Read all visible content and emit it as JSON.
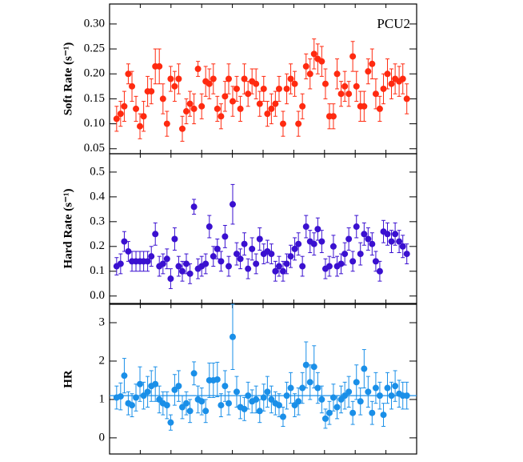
{
  "chart_data": [
    {
      "type": "scatter",
      "ylabel": "Soft Rate (s⁻¹)",
      "annotation": "PCU2",
      "color": "#ff2a10",
      "xlim": [
        0,
        100
      ],
      "xticks": [
        0,
        10,
        20,
        30,
        40,
        50,
        60,
        70,
        80,
        90,
        100
      ],
      "ylim": [
        0.04,
        0.34
      ],
      "yticks": [
        0.05,
        {
          "value": 0.1,
          "label": "0.10"
        },
        0.15,
        {
          "value": 0.2,
          "label": "0.20"
        },
        0.25,
        {
          "value": 0.3,
          "label": "0.30"
        }
      ],
      "x": [
        2.3,
        3.6,
        4.8,
        6.1,
        7.3,
        8.6,
        9.9,
        11.1,
        12.4,
        13.6,
        14.9,
        16.2,
        17.4,
        18.7,
        19.9,
        21.2,
        22.5,
        23.7,
        25.0,
        26.2,
        27.5,
        28.8,
        30.0,
        31.3,
        32.5,
        33.8,
        35.1,
        36.3,
        37.6,
        38.8,
        40.1,
        41.4,
        42.6,
        43.9,
        45.1,
        46.4,
        47.7,
        48.9,
        50.2,
        51.4,
        52.7,
        54.0,
        55.2,
        56.5,
        57.7,
        59.0,
        60.3,
        61.5,
        62.8,
        64.0,
        65.3,
        66.6,
        67.8,
        69.1,
        70.3,
        71.6,
        72.9,
        74.1,
        75.4,
        76.6,
        77.9,
        79.2,
        80.4,
        81.7,
        82.9,
        84.2,
        85.5,
        86.7,
        88.0,
        89.2,
        90.5,
        91.8,
        93.0,
        94.3,
        95.5,
        96.8
      ],
      "values": [
        0.11,
        0.12,
        0.135,
        0.2,
        0.175,
        0.13,
        0.095,
        0.115,
        0.165,
        0.165,
        0.215,
        0.215,
        0.15,
        0.1,
        0.19,
        0.175,
        0.19,
        0.09,
        0.125,
        0.14,
        0.13,
        0.21,
        0.135,
        0.185,
        0.18,
        0.19,
        0.13,
        0.115,
        0.155,
        0.19,
        0.145,
        0.17,
        0.13,
        0.19,
        0.16,
        0.185,
        0.18,
        0.14,
        0.17,
        0.12,
        0.13,
        0.14,
        0.17,
        0.1,
        0.17,
        0.19,
        0.18,
        0.1,
        0.135,
        0.215,
        0.2,
        0.24,
        0.23,
        0.225,
        0.18,
        0.115,
        0.115,
        0.2,
        0.16,
        0.175,
        0.16,
        0.235,
        0.175,
        0.135,
        0.135,
        0.205,
        0.22,
        0.16,
        0.13,
        0.17,
        0.2,
        0.18,
        0.19,
        0.185,
        0.19,
        0.15
      ],
      "errors": [
        0.025,
        0.025,
        0.03,
        0.02,
        0.03,
        0.025,
        0.025,
        0.03,
        0.03,
        0.025,
        0.035,
        0.035,
        0.03,
        0.025,
        0.025,
        0.03,
        0.03,
        0.025,
        0.025,
        0.025,
        0.03,
        0.015,
        0.025,
        0.03,
        0.03,
        0.03,
        0.025,
        0.025,
        0.03,
        0.03,
        0.03,
        0.025,
        0.025,
        0.03,
        0.025,
        0.025,
        0.03,
        0.025,
        0.025,
        0.025,
        0.03,
        0.025,
        0.025,
        0.025,
        0.03,
        0.03,
        0.025,
        0.025,
        0.025,
        0.025,
        0.03,
        0.03,
        0.03,
        0.03,
        0.03,
        0.025,
        0.025,
        0.03,
        0.025,
        0.03,
        0.025,
        0.03,
        0.03,
        0.03,
        0.03,
        0.025,
        0.03,
        0.03,
        0.025,
        0.03,
        0.03,
        0.03,
        0.03,
        0.03,
        0.03,
        0.03
      ]
    },
    {
      "type": "scatter",
      "ylabel": "Hard Rate (s⁻¹)",
      "color": "#3a10d0",
      "xlim": [
        0,
        100
      ],
      "xticks": [
        0,
        10,
        20,
        30,
        40,
        50,
        60,
        70,
        80,
        90,
        100
      ],
      "ylim": [
        -0.03,
        0.574
      ],
      "yticks": [
        {
          "value": 0,
          "label": "0.0"
        },
        0.1,
        0.2,
        0.3,
        0.4,
        0.5
      ],
      "x": [
        2.3,
        3.6,
        4.8,
        6.1,
        7.3,
        8.6,
        9.9,
        11.1,
        12.4,
        13.6,
        14.9,
        16.2,
        17.4,
        18.7,
        19.9,
        21.2,
        22.5,
        23.7,
        25.0,
        26.2,
        27.5,
        28.8,
        30.0,
        31.3,
        32.5,
        33.8,
        35.1,
        36.3,
        37.6,
        38.8,
        40.1,
        41.4,
        42.6,
        43.9,
        45.1,
        46.4,
        47.7,
        48.9,
        50.2,
        51.4,
        52.7,
        54.0,
        55.2,
        56.5,
        57.7,
        59.0,
        60.3,
        61.5,
        62.8,
        64.0,
        65.3,
        66.6,
        67.8,
        69.1,
        70.3,
        71.6,
        72.9,
        74.1,
        75.4,
        76.6,
        77.9,
        79.2,
        80.4,
        81.7,
        82.9,
        84.2,
        85.5,
        86.7,
        88.0,
        89.2,
        90.5,
        91.8,
        93.0,
        94.3,
        95.5,
        96.8
      ],
      "values": [
        0.12,
        0.13,
        0.22,
        0.18,
        0.14,
        0.14,
        0.14,
        0.14,
        0.14,
        0.16,
        0.25,
        0.12,
        0.13,
        0.15,
        0.07,
        0.23,
        0.12,
        0.1,
        0.13,
        0.09,
        0.36,
        0.11,
        0.12,
        0.13,
        0.28,
        0.16,
        0.19,
        0.14,
        0.24,
        0.12,
        0.37,
        0.17,
        0.15,
        0.21,
        0.11,
        0.19,
        0.13,
        0.23,
        0.17,
        0.18,
        0.17,
        0.1,
        0.12,
        0.1,
        0.13,
        0.16,
        0.19,
        0.21,
        0.12,
        0.28,
        0.22,
        0.21,
        0.27,
        0.22,
        0.11,
        0.12,
        0.2,
        0.12,
        0.13,
        0.17,
        0.23,
        0.14,
        0.28,
        0.17,
        0.25,
        0.23,
        0.21,
        0.14,
        0.1,
        0.26,
        0.25,
        0.22,
        0.25,
        0.22,
        0.2,
        0.17
      ],
      "errors": [
        0.035,
        0.04,
        0.04,
        0.04,
        0.04,
        0.04,
        0.04,
        0.04,
        0.04,
        0.04,
        0.045,
        0.04,
        0.04,
        0.04,
        0.04,
        0.045,
        0.04,
        0.04,
        0.04,
        0.04,
        0.03,
        0.04,
        0.04,
        0.04,
        0.045,
        0.04,
        0.04,
        0.04,
        0.045,
        0.04,
        0.08,
        0.045,
        0.04,
        0.045,
        0.04,
        0.045,
        0.04,
        0.045,
        0.04,
        0.045,
        0.04,
        0.04,
        0.04,
        0.04,
        0.04,
        0.045,
        0.045,
        0.045,
        0.04,
        0.045,
        0.045,
        0.045,
        0.045,
        0.045,
        0.04,
        0.04,
        0.045,
        0.04,
        0.04,
        0.045,
        0.045,
        0.04,
        0.045,
        0.045,
        0.045,
        0.045,
        0.045,
        0.04,
        0.04,
        0.045,
        0.045,
        0.045,
        0.045,
        0.045,
        0.045,
        0.04
      ]
    },
    {
      "type": "scatter",
      "ylabel": "HR",
      "color": "#1a8fe8",
      "hline": 1.1,
      "xlim": [
        0,
        100
      ],
      "xticks": [
        0,
        10,
        20,
        30,
        40,
        50,
        60,
        70,
        80,
        90,
        100
      ],
      "ylim": [
        -0.42,
        3.48
      ],
      "yticks": [
        0,
        1,
        2,
        3
      ],
      "x": [
        2.3,
        3.6,
        4.8,
        6.1,
        7.3,
        8.6,
        9.9,
        11.1,
        12.4,
        13.6,
        14.9,
        16.2,
        17.4,
        18.7,
        19.9,
        21.2,
        22.5,
        23.7,
        25.0,
        26.2,
        27.5,
        28.8,
        30.0,
        31.3,
        32.5,
        33.8,
        35.1,
        36.3,
        37.6,
        38.8,
        40.1,
        41.4,
        42.6,
        43.9,
        45.1,
        46.4,
        47.7,
        48.9,
        50.2,
        51.4,
        52.7,
        54.0,
        55.2,
        56.5,
        57.7,
        59.0,
        60.3,
        61.5,
        62.8,
        64.0,
        65.3,
        66.6,
        67.8,
        69.1,
        70.3,
        71.6,
        72.9,
        74.1,
        75.4,
        76.6,
        77.9,
        79.2,
        80.4,
        81.7,
        82.9,
        84.2,
        85.5,
        86.7,
        88.0,
        89.2,
        90.5,
        91.8,
        93.0,
        94.3,
        95.5,
        96.8
      ],
      "values": [
        1.05,
        1.08,
        1.62,
        0.9,
        0.85,
        1.05,
        1.4,
        1.1,
        1.2,
        1.35,
        1.4,
        1.0,
        0.9,
        0.85,
        0.4,
        1.25,
        1.35,
        0.8,
        0.9,
        0.7,
        1.68,
        1.0,
        0.95,
        0.7,
        1.5,
        1.5,
        1.52,
        0.85,
        1.35,
        0.9,
        2.63,
        1.2,
        0.8,
        0.75,
        1.1,
        0.95,
        1.0,
        0.7,
        1.05,
        1.2,
        1.0,
        0.9,
        0.85,
        0.55,
        1.1,
        1.3,
        0.85,
        0.95,
        1.3,
        1.9,
        1.45,
        1.85,
        1.3,
        1.0,
        0.5,
        0.65,
        1.05,
        0.8,
        1.0,
        1.1,
        1.2,
        0.65,
        1.45,
        0.95,
        1.8,
        1.2,
        0.65,
        1.3,
        1.1,
        0.6,
        1.3,
        1.1,
        1.35,
        1.15,
        1.1,
        1.1
      ],
      "errors": [
        0.3,
        0.35,
        0.45,
        0.3,
        0.3,
        0.35,
        0.45,
        0.35,
        0.4,
        0.4,
        0.45,
        0.35,
        0.3,
        0.35,
        0.2,
        0.4,
        0.4,
        0.3,
        0.3,
        0.3,
        0.3,
        0.35,
        0.35,
        0.3,
        0.45,
        0.45,
        0.45,
        0.3,
        0.4,
        0.3,
        0.85,
        0.4,
        0.3,
        0.3,
        0.35,
        0.3,
        0.35,
        0.3,
        0.35,
        0.4,
        0.35,
        0.3,
        0.3,
        0.25,
        0.35,
        0.4,
        0.3,
        0.35,
        0.4,
        0.6,
        0.45,
        0.55,
        0.4,
        0.35,
        0.25,
        0.3,
        0.35,
        0.3,
        0.35,
        0.35,
        0.4,
        0.3,
        0.45,
        0.35,
        0.5,
        0.4,
        0.3,
        0.4,
        0.35,
        0.3,
        0.4,
        0.35,
        0.4,
        0.35,
        0.35,
        0.35
      ]
    }
  ]
}
